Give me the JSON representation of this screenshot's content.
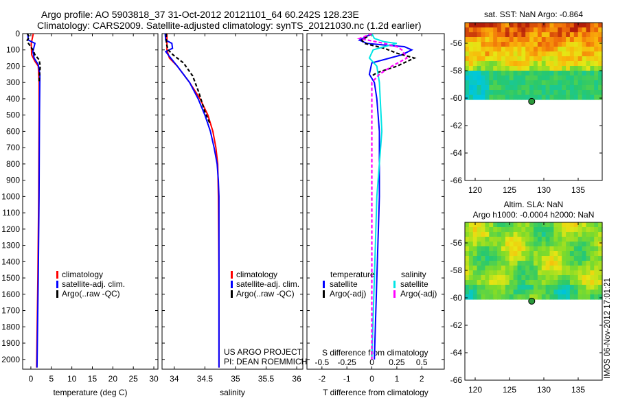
{
  "header": {
    "title_line1": "Argo profile: AO 5903818_37 31-Oct-2012 20121101_64 60.242S 128.23E",
    "title_line2": "Climatology: CARS2009. Satellite-adjusted climatology: synTS_20121030.nc (1.2d earlier)"
  },
  "credit": {
    "line1": "US ARGO PROJECT",
    "line2": "PI: DEAN ROEMMICH"
  },
  "stamp": "IMOS 06-Nov-2012 17:01:21",
  "colors": {
    "climatology": "#ff0000",
    "satellite": "#0000ff",
    "argo": "#000000",
    "sat_salinity": "#00e5e5",
    "argo_salinity": "#ff00ff"
  },
  "chart_data": [
    {
      "type": "line",
      "id": "temperature",
      "xlabel": "temperature (deg C)",
      "xlim": [
        -2,
        31
      ],
      "xticks": [
        0,
        5,
        10,
        15,
        20,
        25,
        30
      ],
      "ylim": [
        2060,
        0
      ],
      "yticks": [
        0,
        100,
        200,
        300,
        400,
        500,
        600,
        700,
        800,
        900,
        1000,
        1100,
        1200,
        1300,
        1400,
        1500,
        1600,
        1700,
        1800,
        1900,
        2000
      ],
      "legend": [
        "climatology",
        "satellite-adj. clim.",
        "Argo(..raw -QC)"
      ],
      "series": [
        {
          "name": "climatology",
          "color": "#ff0000",
          "dash": "",
          "points": [
            [
              0.6,
              0
            ],
            [
              0.1,
              60
            ],
            [
              0.2,
              130
            ],
            [
              1.0,
              170
            ],
            [
              1.8,
              200
            ],
            [
              2.0,
              300
            ],
            [
              2.0,
              500
            ],
            [
              1.9,
              1000
            ],
            [
              1.7,
              1500
            ],
            [
              1.4,
              2050
            ]
          ]
        },
        {
          "name": "satellite-adj. clim.",
          "color": "#0000ff",
          "dash": "",
          "points": [
            [
              -0.8,
              0
            ],
            [
              -0.6,
              40
            ],
            [
              1.0,
              60
            ],
            [
              0.5,
              110
            ],
            [
              0.8,
              150
            ],
            [
              1.8,
              190
            ],
            [
              2.2,
              250
            ],
            [
              2.1,
              500
            ],
            [
              2.0,
              1000
            ],
            [
              1.8,
              1500
            ],
            [
              1.5,
              2050
            ]
          ]
        },
        {
          "name": "Argo(..raw -QC)",
          "color": "#000000",
          "dash": "5,3",
          "points": [
            [
              -0.9,
              0
            ],
            [
              -0.3,
              20
            ],
            [
              -0.9,
              40
            ],
            [
              -0.6,
              60
            ],
            [
              0.5,
              100
            ],
            [
              1.0,
              130
            ],
            [
              2.0,
              160
            ],
            [
              2.3,
              200
            ],
            [
              2.1,
              250
            ],
            [
              2.0,
              300
            ]
          ]
        }
      ]
    },
    {
      "type": "line",
      "id": "salinity",
      "xlabel": "salinity",
      "xlim": [
        33.8,
        36.1
      ],
      "xticks": [
        34,
        34.5,
        35,
        35.5,
        36
      ],
      "ylim": [
        2060,
        0
      ],
      "legend": [
        "climatology",
        "satellite-adj. clim.",
        "Argo(..raw -QC)"
      ],
      "series": [
        {
          "name": "climatology",
          "color": "#ff0000",
          "dash": "",
          "points": [
            [
              33.88,
              0
            ],
            [
              33.88,
              100
            ],
            [
              33.92,
              150
            ],
            [
              34.05,
              200
            ],
            [
              34.25,
              300
            ],
            [
              34.42,
              400
            ],
            [
              34.55,
              500
            ],
            [
              34.63,
              600
            ],
            [
              34.68,
              700
            ],
            [
              34.71,
              800
            ],
            [
              34.72,
              1000
            ],
            [
              34.73,
              1500
            ],
            [
              34.73,
              2050
            ]
          ]
        },
        {
          "name": "satellite-adj. clim.",
          "color": "#0000ff",
          "dash": "",
          "points": [
            [
              33.85,
              0
            ],
            [
              33.86,
              40
            ],
            [
              33.96,
              60
            ],
            [
              33.97,
              90
            ],
            [
              33.86,
              110
            ],
            [
              33.9,
              130
            ],
            [
              34.05,
              200
            ],
            [
              34.25,
              300
            ],
            [
              34.39,
              400
            ],
            [
              34.5,
              500
            ],
            [
              34.59,
              600
            ],
            [
              34.65,
              700
            ],
            [
              34.7,
              800
            ],
            [
              34.72,
              900
            ],
            [
              34.73,
              1000
            ],
            [
              34.73,
              1500
            ],
            [
              34.73,
              2050
            ]
          ]
        },
        {
          "name": "Argo(..raw -QC)",
          "color": "#000000",
          "dash": "5,3",
          "points": [
            [
              33.87,
              0
            ],
            [
              33.87,
              60
            ],
            [
              33.9,
              100
            ],
            [
              33.98,
              130
            ],
            [
              34.15,
              180
            ],
            [
              34.3,
              260
            ],
            [
              34.4,
              360
            ],
            [
              34.5,
              480
            ],
            [
              34.58,
              550
            ]
          ]
        }
      ]
    },
    {
      "type": "line",
      "id": "difference",
      "xlabel": "T difference from climatology",
      "xlabel2": "S difference from climatology",
      "xlim": [
        -2.6,
        2.9
      ],
      "xticks": [
        -2,
        -1,
        0,
        1,
        2
      ],
      "xticks2_labels": [
        "-0.5",
        "-0.25",
        "0",
        "0.25",
        "0.5"
      ],
      "xticks2_tvalues": [
        -2,
        -1,
        0,
        1,
        2
      ],
      "ylim": [
        2060,
        0
      ],
      "legend_temperature_title": "temperature",
      "legend_salinity_title": "salinity",
      "legend": [
        "satellite",
        "Argo(-adj)",
        "satellite",
        "Argo(-adj)"
      ],
      "series": [
        {
          "name": "satellite",
          "group": "temperature",
          "color": "#0000ff",
          "dash": "",
          "points": [
            [
              0,
              0
            ],
            [
              -0.5,
              40
            ],
            [
              -0.2,
              60
            ],
            [
              0.5,
              70
            ],
            [
              1.3,
              80
            ],
            [
              1.6,
              100
            ],
            [
              1.2,
              130
            ],
            [
              0,
              180
            ],
            [
              -0.1,
              250
            ],
            [
              0.1,
              300
            ],
            [
              0.2,
              400
            ],
            [
              0.3,
              600
            ],
            [
              0.3,
              1000
            ],
            [
              0.2,
              1500
            ],
            [
              0.1,
              2000
            ]
          ]
        },
        {
          "name": "Argo(-adj)",
          "group": "temperature",
          "color": "#000000",
          "dash": "5,3",
          "points": [
            [
              0,
              0
            ],
            [
              -0.2,
              20
            ],
            [
              -0.4,
              40
            ],
            [
              -0.3,
              60
            ],
            [
              0.5,
              90
            ],
            [
              1.0,
              120
            ],
            [
              1.7,
              150
            ],
            [
              1.0,
              200
            ],
            [
              0.2,
              240
            ],
            [
              0,
              260
            ]
          ]
        },
        {
          "name": "satellite",
          "group": "salinity",
          "color": "#00e5e5",
          "dash": "",
          "points": [
            [
              0,
              0
            ],
            [
              0.1,
              30
            ],
            [
              0.5,
              50
            ],
            [
              1.0,
              60
            ],
            [
              0.5,
              80
            ],
            [
              0.05,
              100
            ],
            [
              -0.1,
              150
            ],
            [
              0.2,
              200
            ],
            [
              0.3,
              300
            ],
            [
              0.4,
              600
            ],
            [
              0.2,
              1000
            ],
            [
              0.1,
              1500
            ],
            [
              0,
              2000
            ]
          ]
        },
        {
          "name": "Argo(-adj)",
          "group": "salinity",
          "color": "#ff00ff",
          "dash": "5,3",
          "points": [
            [
              0,
              0
            ],
            [
              -0.5,
              30
            ],
            [
              0.5,
              60
            ],
            [
              1.0,
              80
            ],
            [
              1.2,
              100
            ],
            [
              1.4,
              150
            ],
            [
              0.8,
              200
            ],
            [
              0.3,
              250
            ],
            [
              0,
              300
            ],
            [
              0,
              1000
            ],
            [
              0,
              2000
            ]
          ]
        }
      ]
    },
    {
      "type": "heatmap",
      "id": "sst_map",
      "title": "sat. SST: NaN Argo: -0.864",
      "xlim": [
        118.5,
        138.5
      ],
      "ylim": [
        -66,
        -54.5
      ],
      "xticks": [
        120,
        125,
        130,
        135
      ],
      "yticks": [
        -56,
        -58,
        -60,
        -62,
        -64,
        -66
      ],
      "data_extent_lat": [
        -60.1,
        -54.5
      ],
      "marker": {
        "lon": 128.23,
        "lat": -60.242
      }
    },
    {
      "type": "heatmap",
      "id": "sla_map",
      "title": "Altim. SLA: NaN",
      "title2": "Argo h1000: -0.0004 h2000: NaN",
      "xlim": [
        118.5,
        138.5
      ],
      "ylim": [
        -66,
        -54.5
      ],
      "xticks": [
        120,
        125,
        130,
        135
      ],
      "yticks": [
        -56,
        -58,
        -60,
        -62,
        -64,
        -66
      ],
      "data_extent_lat": [
        -60.1,
        -54.5
      ],
      "marker": {
        "lon": 128.23,
        "lat": -60.242
      }
    }
  ]
}
